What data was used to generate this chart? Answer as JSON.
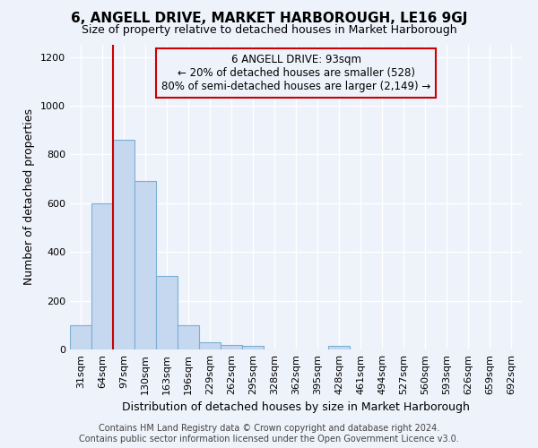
{
  "title": "6, ANGELL DRIVE, MARKET HARBOROUGH, LE16 9GJ",
  "subtitle": "Size of property relative to detached houses in Market Harborough",
  "xlabel": "Distribution of detached houses by size in Market Harborough",
  "ylabel": "Number of detached properties",
  "footer_line1": "Contains HM Land Registry data © Crown copyright and database right 2024.",
  "footer_line2": "Contains public sector information licensed under the Open Government Licence v3.0.",
  "categories": [
    "31sqm",
    "64sqm",
    "97sqm",
    "130sqm",
    "163sqm",
    "196sqm",
    "229sqm",
    "262sqm",
    "295sqm",
    "328sqm",
    "362sqm",
    "395sqm",
    "428sqm",
    "461sqm",
    "494sqm",
    "527sqm",
    "560sqm",
    "593sqm",
    "626sqm",
    "659sqm",
    "692sqm"
  ],
  "bar_heights": [
    100,
    600,
    860,
    690,
    300,
    100,
    30,
    20,
    15,
    0,
    0,
    0,
    15,
    0,
    0,
    0,
    0,
    0,
    0,
    0,
    0
  ],
  "bar_color": "#c5d8f0",
  "bar_edge_color": "#7bafd4",
  "ylim": [
    0,
    1250
  ],
  "yticks": [
    0,
    200,
    400,
    600,
    800,
    1000,
    1200
  ],
  "vline_x_index": 2,
  "vline_color": "#cc0000",
  "annotation_line1": "6 ANGELL DRIVE: 93sqm",
  "annotation_line2": "← 20% of detached houses are smaller (528)",
  "annotation_line3": "80% of semi-detached houses are larger (2,149) →",
  "ann_box_color": "#cc0000",
  "background_color": "#eef2fb",
  "grid_color": "#ffffff",
  "title_fontsize": 11,
  "subtitle_fontsize": 9,
  "ylabel_fontsize": 9,
  "xlabel_fontsize": 9,
  "tick_fontsize": 8,
  "ann_fontsize": 8.5,
  "footer_fontsize": 7
}
